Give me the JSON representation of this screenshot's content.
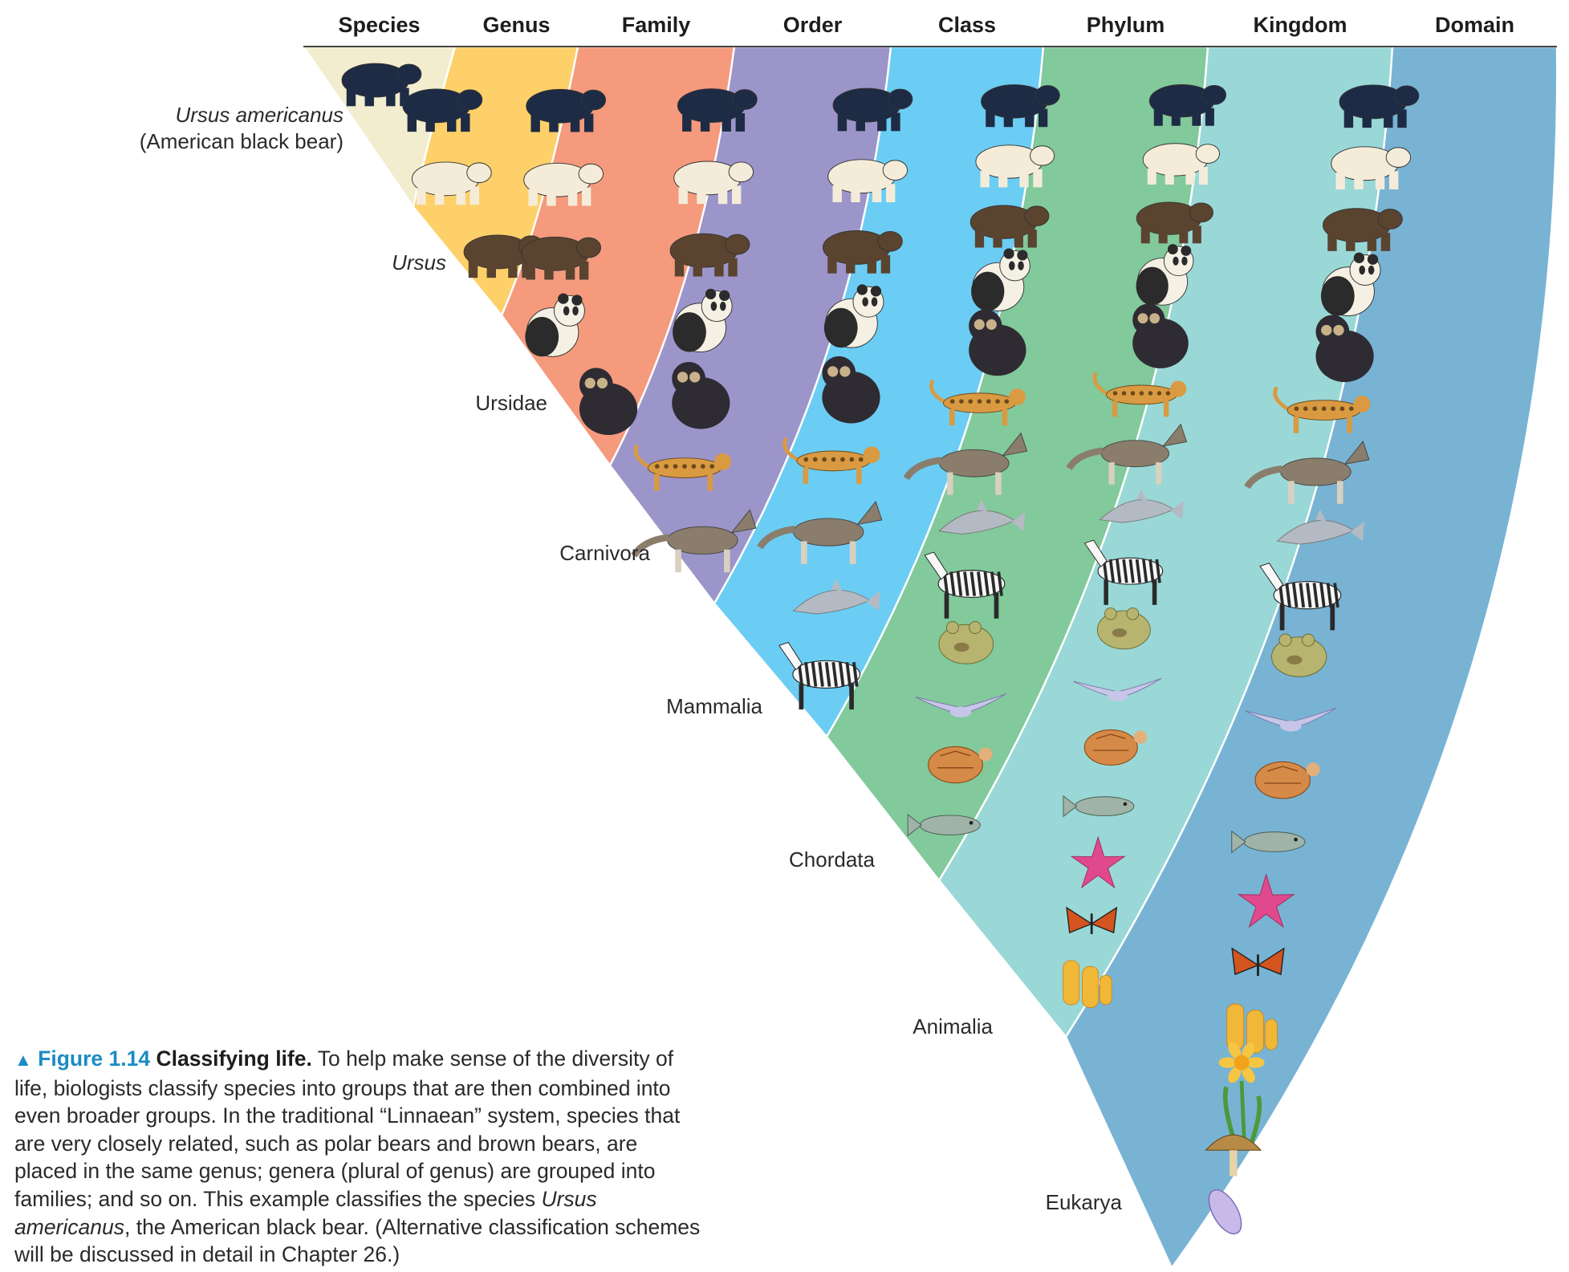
{
  "ranks": [
    {
      "header": "Species",
      "label": "Ursus americanus",
      "label_line2": "(American black bear)",
      "italic": true,
      "color": "#f3edcf",
      "organisms": [
        "black-bear"
      ]
    },
    {
      "header": "Genus",
      "label": "Ursus",
      "italic": true,
      "color": "#fdd06a",
      "organisms": [
        "black-bear",
        "polar-bear",
        "brown-bear"
      ]
    },
    {
      "header": "Family",
      "label": "Ursidae",
      "italic": false,
      "color": "#f59a7c",
      "organisms": [
        "black-bear",
        "polar-bear",
        "brown-bear",
        "giant-panda",
        "spectacled-bear"
      ]
    },
    {
      "header": "Order",
      "label": "Carnivora",
      "italic": false,
      "color": "#9c95c9",
      "organisms": [
        "black-bear",
        "polar-bear",
        "brown-bear",
        "giant-panda",
        "spectacled-bear",
        "leopard",
        "wolf"
      ]
    },
    {
      "header": "Class",
      "label": "Mammalia",
      "italic": false,
      "color": "#6bcdf3",
      "organisms": [
        "black-bear",
        "polar-bear",
        "brown-bear",
        "giant-panda",
        "spectacled-bear",
        "leopard",
        "wolf",
        "dolphin",
        "zebra"
      ]
    },
    {
      "header": "Phylum",
      "label": "Chordata",
      "italic": false,
      "color": "#82c99b",
      "organisms": [
        "black-bear",
        "polar-bear",
        "brown-bear",
        "giant-panda",
        "spectacled-bear",
        "leopard",
        "wolf",
        "dolphin",
        "zebra",
        "frog",
        "bird",
        "turtle",
        "fish"
      ]
    },
    {
      "header": "Kingdom",
      "label": "Animalia",
      "italic": false,
      "color": "#99d8d6",
      "organisms": [
        "black-bear",
        "polar-bear",
        "brown-bear",
        "giant-panda",
        "spectacled-bear",
        "leopard",
        "wolf",
        "dolphin",
        "zebra",
        "frog",
        "bird",
        "turtle",
        "fish",
        "sea-star",
        "butterfly",
        "sponge"
      ]
    },
    {
      "header": "Domain",
      "label": "Eukarya",
      "italic": false,
      "color": "#78b3d4",
      "organisms": [
        "black-bear",
        "polar-bear",
        "brown-bear",
        "giant-panda",
        "spectacled-bear",
        "leopard",
        "wolf",
        "dolphin",
        "zebra",
        "frog",
        "bird",
        "turtle",
        "fish",
        "sea-star",
        "butterfly",
        "sponge",
        "daffodil",
        "mushroom",
        "paramecium"
      ]
    }
  ],
  "caption": {
    "marker": "▲",
    "figure_number": "Figure 1.14",
    "figure_title": "Classifying life.",
    "text_1": "To help make sense of the diversity of life, biologists classify species into groups that are then combined into even broader groups. In the traditional “Linnaean” system, species that are very closely related, such as polar bears and brown bears, are placed in the same genus; genera (plural of genus) are grouped into families; and so on. This example classifies the species",
    "text_italic": "Ursus americanus",
    "text_2": ", the American black bear. (Alternative classification schemes will be discussed in detail in Chapter 26.)"
  },
  "colors": {
    "caption_accent": "#1b8cc4",
    "band_divider": "#ffffff"
  }
}
